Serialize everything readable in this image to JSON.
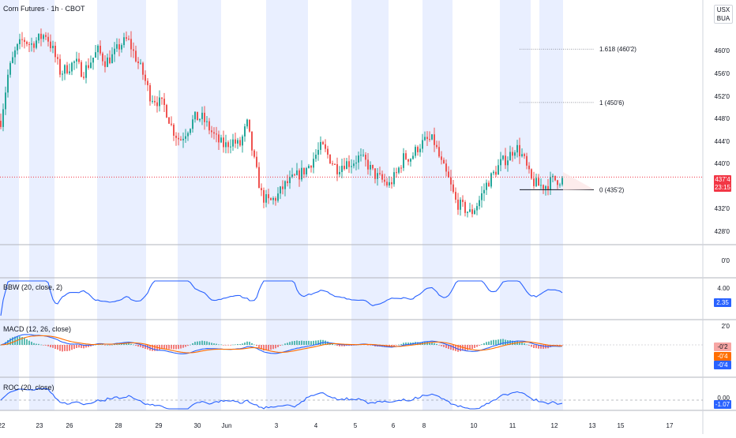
{
  "header": {
    "symbol_title": "Corn Futures · 1h · CBOT"
  },
  "currency": {
    "line1": "USX",
    "line2": "BUA"
  },
  "price_axis": {
    "ticks": [
      "460'0",
      "456'0",
      "452'0",
      "448'0",
      "444'0",
      "440'0",
      "432'0",
      "428'0"
    ],
    "last_price_tag": "437'4",
    "countdown_tag": "23:15"
  },
  "fib_levels": [
    {
      "label": "1.618 (460'2)",
      "price": 460.25
    },
    {
      "label": "1 (450'6)",
      "price": 450.75
    },
    {
      "label": "0 (435'2)",
      "price": 435.25
    }
  ],
  "empty_pane": {
    "axis_label": "0'0"
  },
  "indicators": {
    "bbw": {
      "title": "BBW (20, close, 2)",
      "axis_tick": "4.00",
      "value_tag": "2.35"
    },
    "macd": {
      "title": "MACD (12, 26, close)",
      "axis_tick": "2'0",
      "tag_hist": "-0'2",
      "tag_signal": "-0'4",
      "tag_macd": "-0'4"
    },
    "roc": {
      "title": "ROC (20, close)",
      "axis_tick": "0.00",
      "value_tag": "-1.07"
    }
  },
  "x_axis": {
    "labels": [
      "22",
      "23",
      "26",
      "28",
      "29",
      "30",
      "Jun",
      "3",
      "4",
      "5",
      "6",
      "8",
      "10",
      "11",
      "12",
      "13",
      "15",
      "17"
    ]
  },
  "colors": {
    "up": "#26a69a",
    "down": "#ef5350",
    "bbw": "#2962ff",
    "macd": "#2962ff",
    "signal": "#ff6d00",
    "roc": "#2962ff",
    "session_band": "#e9efff",
    "price_line": "#f23645"
  },
  "chart_data": {
    "type": "candlestick",
    "title": "Corn Futures · 1h · CBOT",
    "y_range": [
      425,
      464
    ],
    "price_path": [
      [
        0,
        447.5
      ],
      [
        1,
        456
      ],
      [
        2,
        460
      ],
      [
        3,
        462
      ],
      [
        4,
        461
      ],
      [
        5,
        462
      ],
      [
        6,
        463
      ],
      [
        7,
        460
      ],
      [
        8,
        456
      ],
      [
        9,
        457
      ],
      [
        10,
        458
      ],
      [
        11,
        456
      ],
      [
        12,
        458
      ],
      [
        13,
        460
      ],
      [
        14,
        458
      ],
      [
        15,
        459
      ],
      [
        16,
        461
      ],
      [
        17,
        462
      ],
      [
        18,
        459
      ],
      [
        19,
        456
      ],
      [
        20,
        452
      ],
      [
        21,
        451
      ],
      [
        22,
        450
      ],
      [
        23,
        446
      ],
      [
        24,
        444
      ],
      [
        25,
        446
      ],
      [
        26,
        448
      ],
      [
        27,
        448
      ],
      [
        28,
        446
      ],
      [
        29,
        444
      ],
      [
        30,
        443
      ],
      [
        31,
        444
      ],
      [
        32,
        443
      ],
      [
        33,
        447
      ],
      [
        34,
        440
      ],
      [
        35,
        434
      ],
      [
        36,
        433
      ],
      [
        37,
        434
      ],
      [
        38,
        436
      ],
      [
        39,
        437
      ],
      [
        40,
        438
      ],
      [
        41,
        439
      ],
      [
        42,
        441
      ],
      [
        43,
        443
      ],
      [
        44,
        441
      ],
      [
        45,
        439
      ],
      [
        46,
        440
      ],
      [
        47,
        440
      ],
      [
        48,
        441
      ],
      [
        49,
        440
      ],
      [
        50,
        438
      ],
      [
        51,
        437
      ],
      [
        52,
        436
      ],
      [
        53,
        438
      ],
      [
        54,
        441
      ],
      [
        55,
        441
      ],
      [
        56,
        443
      ],
      [
        57,
        444
      ],
      [
        58,
        444
      ],
      [
        59,
        440
      ],
      [
        60,
        437
      ],
      [
        61,
        433
      ],
      [
        62,
        432
      ],
      [
        63,
        431
      ],
      [
        64,
        433
      ],
      [
        65,
        436
      ],
      [
        66,
        438
      ],
      [
        67,
        440
      ],
      [
        68,
        441
      ],
      [
        69,
        443
      ],
      [
        70,
        441
      ],
      [
        71,
        437
      ],
      [
        72,
        436
      ],
      [
        73,
        436
      ],
      [
        74,
        437
      ]
    ],
    "session_shading": true,
    "last_price": 437.5
  }
}
